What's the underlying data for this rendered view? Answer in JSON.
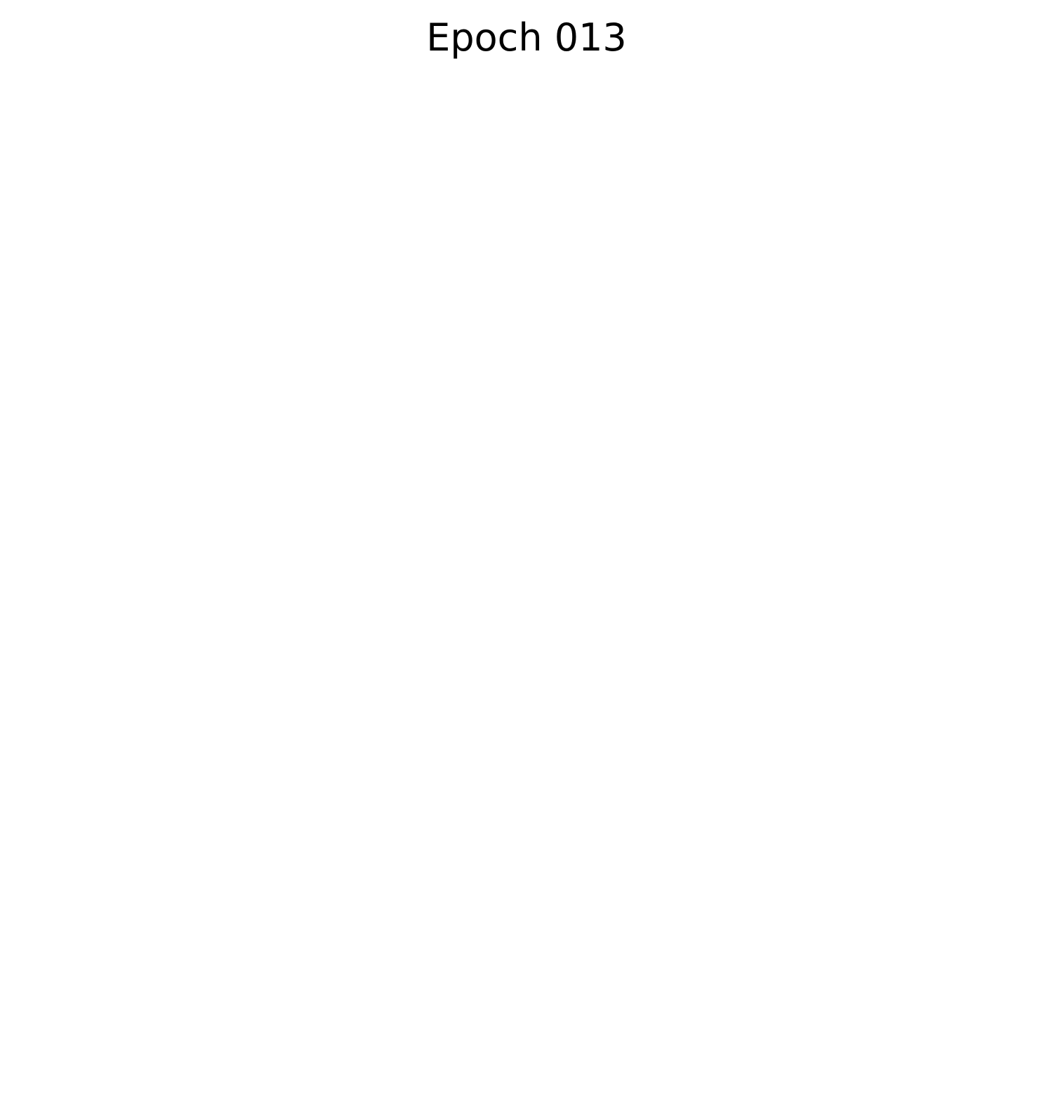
{
  "title": "Epoch 013"
}
